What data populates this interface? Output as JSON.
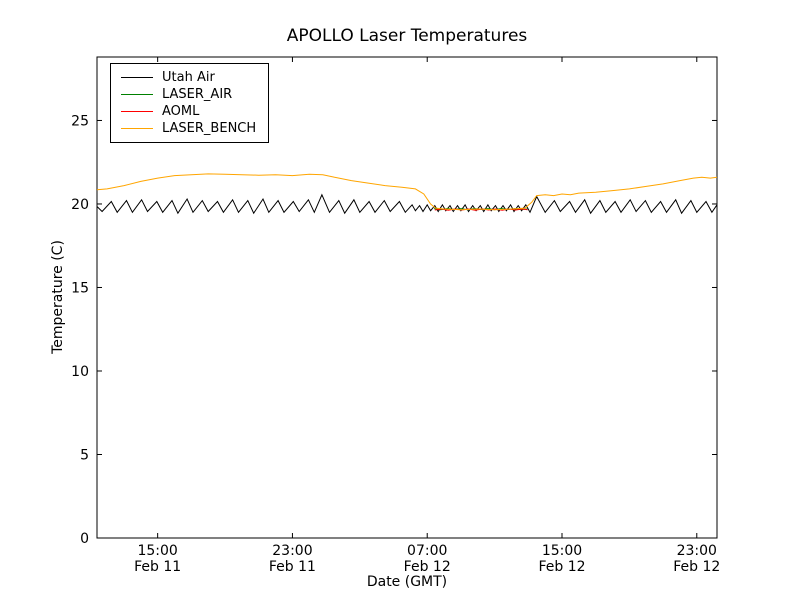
{
  "chart_data": {
    "type": "line",
    "title": "APOLLO Laser Temperatures",
    "xlabel": "Date (GMT)",
    "ylabel": "Temperature (C)",
    "x_unit": "hours since Feb 11 00:00 GMT",
    "xlim": [
      11.4,
      48.2
    ],
    "ylim": [
      0,
      28.8
    ],
    "grid": false,
    "legend_position": "upper left",
    "xticks": [
      {
        "value": 15,
        "label": "15:00",
        "label2": "Feb 11"
      },
      {
        "value": 23,
        "label": "23:00",
        "label2": "Feb 11"
      },
      {
        "value": 31,
        "label": "07:00",
        "label2": "Feb 12"
      },
      {
        "value": 39,
        "label": "15:00",
        "label2": "Feb 12"
      },
      {
        "value": 47,
        "label": "23:00",
        "label2": "Feb 12"
      }
    ],
    "yticks": [
      {
        "value": 0,
        "label": "0"
      },
      {
        "value": 5,
        "label": "5"
      },
      {
        "value": 10,
        "label": "10"
      },
      {
        "value": 15,
        "label": "15"
      },
      {
        "value": 20,
        "label": "20"
      },
      {
        "value": 25,
        "label": "25"
      }
    ],
    "series": [
      {
        "name": "Utah Air",
        "color": "#000000",
        "points": [
          [
            11.4,
            19.85
          ],
          [
            11.7,
            19.55
          ],
          [
            12.25,
            20.15
          ],
          [
            12.6,
            19.5
          ],
          [
            13.15,
            20.2
          ],
          [
            13.5,
            19.5
          ],
          [
            14.05,
            20.25
          ],
          [
            14.4,
            19.55
          ],
          [
            14.95,
            20.15
          ],
          [
            15.3,
            19.5
          ],
          [
            15.85,
            20.2
          ],
          [
            16.2,
            19.45
          ],
          [
            16.75,
            20.3
          ],
          [
            17.1,
            19.5
          ],
          [
            17.65,
            20.2
          ],
          [
            18.0,
            19.55
          ],
          [
            18.55,
            20.15
          ],
          [
            18.9,
            19.5
          ],
          [
            19.45,
            20.25
          ],
          [
            19.8,
            19.5
          ],
          [
            20.35,
            20.2
          ],
          [
            20.7,
            19.45
          ],
          [
            21.25,
            20.3
          ],
          [
            21.6,
            19.5
          ],
          [
            22.15,
            20.2
          ],
          [
            22.5,
            19.5
          ],
          [
            23.05,
            20.15
          ],
          [
            23.4,
            19.55
          ],
          [
            23.95,
            20.25
          ],
          [
            24.3,
            19.5
          ],
          [
            24.75,
            20.55
          ],
          [
            25.2,
            19.5
          ],
          [
            25.75,
            20.2
          ],
          [
            26.1,
            19.45
          ],
          [
            26.65,
            20.25
          ],
          [
            27.0,
            19.5
          ],
          [
            27.55,
            20.15
          ],
          [
            27.9,
            19.5
          ],
          [
            28.45,
            20.2
          ],
          [
            28.8,
            19.55
          ],
          [
            29.35,
            20.15
          ],
          [
            29.7,
            19.5
          ],
          [
            30.1,
            19.95
          ],
          [
            30.3,
            19.6
          ],
          [
            30.55,
            19.9
          ],
          [
            30.75,
            19.55
          ],
          [
            31.0,
            19.95
          ],
          [
            31.2,
            19.6
          ],
          [
            31.45,
            19.9
          ],
          [
            31.65,
            19.55
          ],
          [
            31.9,
            19.95
          ],
          [
            32.1,
            19.6
          ],
          [
            32.35,
            19.9
          ],
          [
            32.55,
            19.55
          ],
          [
            32.8,
            19.9
          ],
          [
            33.0,
            19.6
          ],
          [
            33.25,
            19.95
          ],
          [
            33.45,
            19.55
          ],
          [
            33.7,
            19.9
          ],
          [
            33.9,
            19.6
          ],
          [
            34.15,
            19.9
          ],
          [
            34.35,
            19.55
          ],
          [
            34.6,
            19.95
          ],
          [
            34.8,
            19.6
          ],
          [
            35.05,
            19.9
          ],
          [
            35.25,
            19.55
          ],
          [
            35.5,
            19.9
          ],
          [
            35.7,
            19.6
          ],
          [
            35.95,
            19.95
          ],
          [
            36.15,
            19.55
          ],
          [
            36.4,
            19.9
          ],
          [
            36.6,
            19.6
          ],
          [
            36.85,
            19.95
          ],
          [
            37.1,
            19.5
          ],
          [
            37.5,
            20.45
          ],
          [
            38.0,
            19.5
          ],
          [
            38.55,
            20.2
          ],
          [
            38.9,
            19.55
          ],
          [
            39.45,
            20.15
          ],
          [
            39.8,
            19.5
          ],
          [
            40.35,
            20.25
          ],
          [
            40.7,
            19.45
          ],
          [
            41.25,
            20.2
          ],
          [
            41.6,
            19.5
          ],
          [
            42.15,
            20.15
          ],
          [
            42.5,
            19.5
          ],
          [
            43.05,
            20.25
          ],
          [
            43.4,
            19.55
          ],
          [
            43.95,
            20.2
          ],
          [
            44.3,
            19.5
          ],
          [
            44.85,
            20.15
          ],
          [
            45.2,
            19.5
          ],
          [
            45.75,
            20.25
          ],
          [
            46.1,
            19.45
          ],
          [
            46.65,
            20.2
          ],
          [
            47.0,
            19.5
          ],
          [
            47.55,
            20.15
          ],
          [
            47.9,
            19.5
          ],
          [
            48.2,
            19.95
          ]
        ]
      },
      {
        "name": "LASER_AIR",
        "color": "#008000",
        "points": [
          [
            31.4,
            19.72
          ],
          [
            31.8,
            19.66
          ],
          [
            32.2,
            19.73
          ],
          [
            32.6,
            19.67
          ],
          [
            33.0,
            19.72
          ],
          [
            33.4,
            19.66
          ],
          [
            33.8,
            19.73
          ],
          [
            34.2,
            19.67
          ],
          [
            34.6,
            19.72
          ],
          [
            35.0,
            19.66
          ],
          [
            35.4,
            19.73
          ],
          [
            35.8,
            19.67
          ],
          [
            36.2,
            19.72
          ],
          [
            36.6,
            19.67
          ],
          [
            36.95,
            19.7
          ]
        ]
      },
      {
        "name": "AOML",
        "color": "#ff0000",
        "points": [
          [
            31.45,
            19.64
          ],
          [
            31.85,
            19.7
          ],
          [
            32.25,
            19.63
          ],
          [
            32.65,
            19.7
          ],
          [
            33.05,
            19.64
          ],
          [
            33.45,
            19.7
          ],
          [
            33.85,
            19.63
          ],
          [
            34.25,
            19.7
          ],
          [
            34.65,
            19.64
          ],
          [
            35.05,
            19.7
          ],
          [
            35.45,
            19.63
          ],
          [
            35.85,
            19.7
          ],
          [
            36.25,
            19.64
          ],
          [
            36.65,
            19.7
          ],
          [
            36.95,
            19.66
          ]
        ]
      },
      {
        "name": "LASER_BENCH",
        "color": "#ffa500",
        "points": [
          [
            11.4,
            20.85
          ],
          [
            12.0,
            20.9
          ],
          [
            13.0,
            21.1
          ],
          [
            14.0,
            21.35
          ],
          [
            15.0,
            21.55
          ],
          [
            16.0,
            21.7
          ],
          [
            17.0,
            21.75
          ],
          [
            18.0,
            21.8
          ],
          [
            19.0,
            21.78
          ],
          [
            20.0,
            21.75
          ],
          [
            21.0,
            21.72
          ],
          [
            22.0,
            21.75
          ],
          [
            23.0,
            21.7
          ],
          [
            24.0,
            21.78
          ],
          [
            24.8,
            21.75
          ],
          [
            25.5,
            21.6
          ],
          [
            26.5,
            21.4
          ],
          [
            27.5,
            21.25
          ],
          [
            28.5,
            21.1
          ],
          [
            29.5,
            21.0
          ],
          [
            30.3,
            20.9
          ],
          [
            30.8,
            20.6
          ],
          [
            31.2,
            20.0
          ],
          [
            31.5,
            19.75
          ],
          [
            32.0,
            19.7
          ],
          [
            33.0,
            19.65
          ],
          [
            34.0,
            19.7
          ],
          [
            35.0,
            19.65
          ],
          [
            36.0,
            19.7
          ],
          [
            36.8,
            19.75
          ],
          [
            37.2,
            20.1
          ],
          [
            37.5,
            20.5
          ],
          [
            38.0,
            20.55
          ],
          [
            38.5,
            20.5
          ],
          [
            39.0,
            20.6
          ],
          [
            39.5,
            20.55
          ],
          [
            40.0,
            20.65
          ],
          [
            41.0,
            20.7
          ],
          [
            42.0,
            20.8
          ],
          [
            43.0,
            20.9
          ],
          [
            44.0,
            21.05
          ],
          [
            45.0,
            21.2
          ],
          [
            46.0,
            21.4
          ],
          [
            46.8,
            21.55
          ],
          [
            47.3,
            21.6
          ],
          [
            47.8,
            21.55
          ],
          [
            48.2,
            21.6
          ]
        ]
      }
    ]
  }
}
